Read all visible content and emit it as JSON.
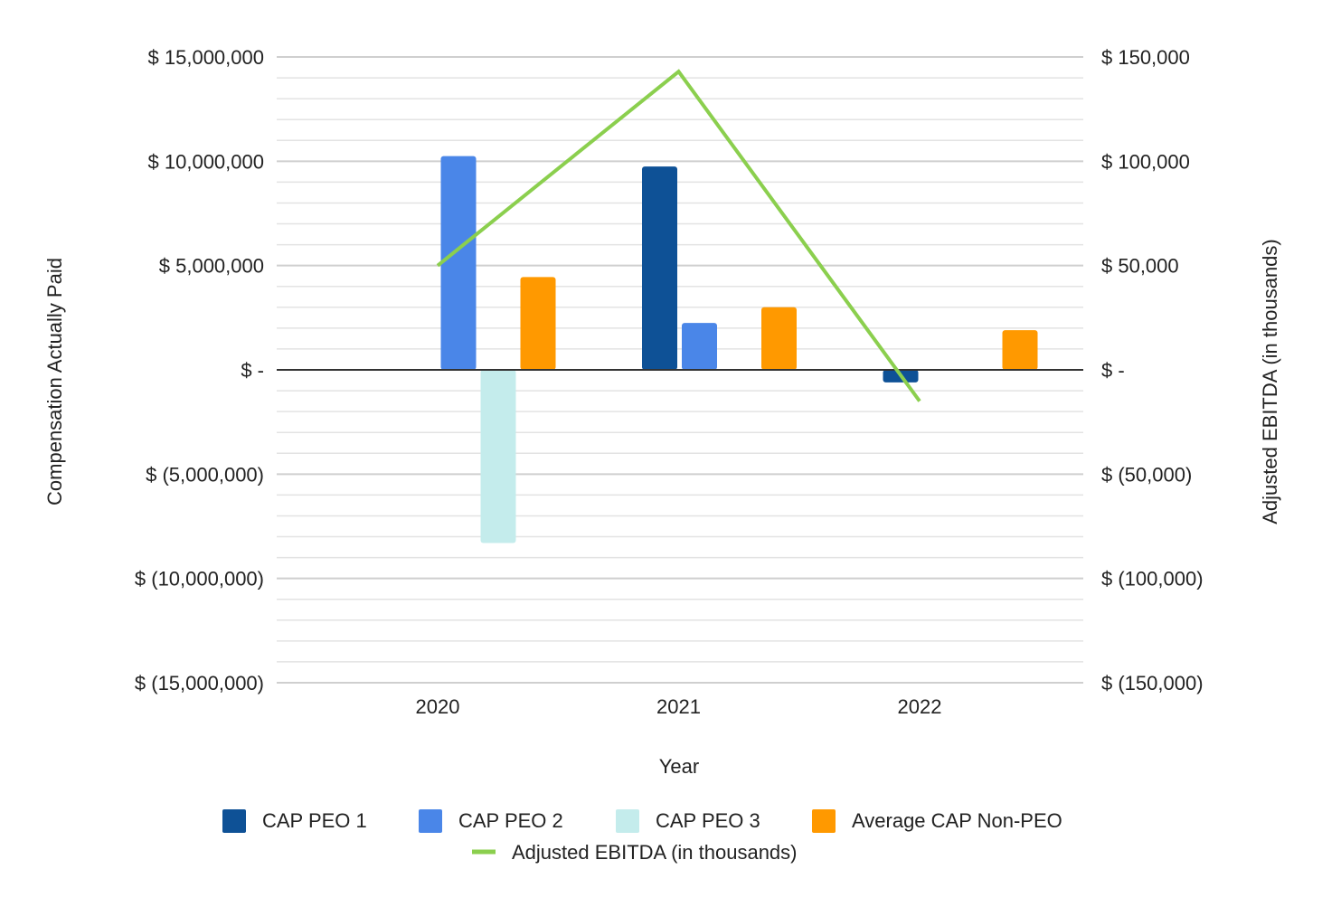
{
  "chart_data": {
    "type": "bar",
    "title": "",
    "xlabel": "Year",
    "ylabel": "Compensation Actually Paid",
    "y2label": "Adjusted EBITDA (in thousands)",
    "categories": [
      "2020",
      "2021",
      "2022"
    ],
    "ylim": [
      -15000000,
      15000000
    ],
    "y2lim": [
      -150000,
      150000
    ],
    "yticks": [
      {
        "value": 15000000,
        "label": "$ 15,000,000"
      },
      {
        "value": 10000000,
        "label": "$ 10,000,000"
      },
      {
        "value": 5000000,
        "label": "$ 5,000,000"
      },
      {
        "value": 0,
        "label": "$ -"
      },
      {
        "value": -5000000,
        "label": "$ (5,000,000)"
      },
      {
        "value": -10000000,
        "label": "$ (10,000,000)"
      },
      {
        "value": -15000000,
        "label": "$ (15,000,000)"
      }
    ],
    "y2ticks": [
      {
        "value": 150000,
        "label": "$ 150,000"
      },
      {
        "value": 100000,
        "label": "$ 100,000"
      },
      {
        "value": 50000,
        "label": "$ 50,000"
      },
      {
        "value": 0,
        "label": "$ -"
      },
      {
        "value": -50000,
        "label": "$ (50,000)"
      },
      {
        "value": -100000,
        "label": "$ (100,000)"
      },
      {
        "value": -150000,
        "label": "$ (150,000)"
      }
    ],
    "series": [
      {
        "name": "CAP PEO 1",
        "kind": "bar",
        "axis": "left",
        "color": "#0e5196",
        "values": [
          null,
          9750000,
          -600000
        ]
      },
      {
        "name": "CAP PEO 2",
        "kind": "bar",
        "axis": "left",
        "color": "#4a86e8",
        "values": [
          10250000,
          2250000,
          null
        ]
      },
      {
        "name": "CAP PEO 3",
        "kind": "bar",
        "axis": "left",
        "color": "#c4ecec",
        "values": [
          -8300000,
          null,
          null
        ]
      },
      {
        "name": "Average CAP Non-PEO",
        "kind": "bar",
        "axis": "left",
        "color": "#ff9900",
        "values": [
          4450000,
          3000000,
          1900000
        ]
      },
      {
        "name": "Adjusted EBITDA (in thousands)",
        "kind": "line",
        "axis": "right",
        "color": "#8bcf4e",
        "values": [
          50000,
          143000,
          -15000
        ]
      }
    ],
    "grid": true,
    "legend_position": "bottom"
  }
}
